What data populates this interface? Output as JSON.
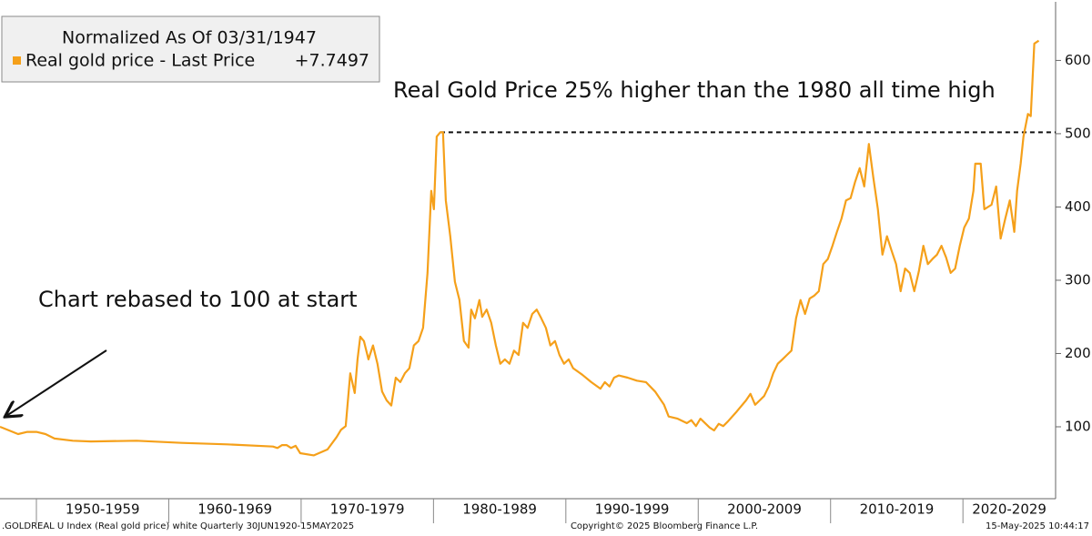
{
  "chart_data": {
    "type": "line",
    "legend_title": "Normalized As Of 03/31/1947",
    "last_price_label": "+7.7497",
    "annotations": [
      "Real Gold Price 25% higher than the 1980 all time high",
      "Chart rebased to 100 at start"
    ],
    "footer": [
      ".GOLDREAL U Index (Real gold price) white  Quarterly 30JUN1920-15MAY2025",
      "Copyright© 2025 Bloomberg Finance L.P.",
      "15-May-2025 10:44:17"
    ],
    "reference_line": {
      "value": 502,
      "x_start": 1980.52
    },
    "xlim": [
      1947.25,
      2027.0
    ],
    "xticks": [
      1950,
      1960,
      1970,
      1980,
      1990,
      2000,
      2010,
      2020
    ],
    "x_band_labels": [
      "1950-1959",
      "1960-1969",
      "1970-1979",
      "1980-1989",
      "1990-1999",
      "2000-2009",
      "2010-2019",
      "2020-2029"
    ],
    "ylim": [
      0,
      680
    ],
    "yticks": [
      100,
      200,
      300,
      400,
      500,
      600
    ],
    "grid": false,
    "x": [
      1947.25,
      1947.94,
      1948.62,
      1949.31,
      1950.0,
      1950.69,
      1951.37,
      1952.75,
      1954.12,
      1957.56,
      1961.0,
      1964.43,
      1967.87,
      1968.21,
      1968.56,
      1968.9,
      1969.24,
      1969.59,
      1969.93,
      1970.96,
      1971.99,
      1972.68,
      1973.02,
      1973.37,
      1973.71,
      1974.05,
      1974.26,
      1974.47,
      1974.74,
      1975.09,
      1975.43,
      1975.77,
      1976.12,
      1976.46,
      1976.81,
      1977.15,
      1977.49,
      1977.84,
      1978.18,
      1978.52,
      1978.87,
      1979.21,
      1979.55,
      1979.83,
      1980.03,
      1980.24,
      1980.52,
      1980.72,
      1980.93,
      1981.27,
      1981.62,
      1981.96,
      1982.3,
      1982.65,
      1982.85,
      1983.13,
      1983.47,
      1983.68,
      1984.02,
      1984.36,
      1984.71,
      1985.05,
      1985.39,
      1985.74,
      1986.08,
      1986.43,
      1986.77,
      1987.11,
      1987.46,
      1987.8,
      1988.14,
      1988.49,
      1988.83,
      1989.18,
      1989.52,
      1989.86,
      1990.21,
      1990.55,
      1991.24,
      1991.92,
      1992.61,
      1992.95,
      1993.3,
      1993.64,
      1993.99,
      1994.67,
      1995.36,
      1996.05,
      1996.74,
      1997.42,
      1997.77,
      1998.45,
      1999.14,
      1999.48,
      1999.83,
      2000.17,
      2000.86,
      2001.2,
      2001.55,
      2001.89,
      2002.23,
      2002.92,
      2003.61,
      2003.95,
      2004.3,
      2004.64,
      2004.98,
      2005.33,
      2005.67,
      2006.01,
      2006.36,
      2006.7,
      2007.04,
      2007.39,
      2007.73,
      2008.07,
      2008.42,
      2008.76,
      2009.11,
      2009.45,
      2009.79,
      2010.14,
      2010.48,
      2010.82,
      2011.17,
      2011.51,
      2011.85,
      2012.2,
      2012.54,
      2012.89,
      2013.23,
      2013.57,
      2013.92,
      2014.26,
      2014.6,
      2014.95,
      2015.29,
      2015.63,
      2015.98,
      2016.32,
      2016.67,
      2017.01,
      2017.35,
      2017.7,
      2018.04,
      2018.38,
      2018.73,
      2019.07,
      2019.41,
      2019.76,
      2020.1,
      2020.45,
      2020.79,
      2020.93,
      2021.34,
      2021.62,
      2022.16,
      2022.51,
      2022.85,
      2023.2,
      2023.54,
      2023.88,
      2024.09,
      2024.36,
      2024.57,
      2024.91,
      2025.12,
      2025.39,
      2025.73
    ],
    "series": [
      {
        "name": "Real gold price - Last Price",
        "color": "#f5a01a",
        "values": [
          100,
          95,
          90,
          93,
          93,
          90,
          84,
          81,
          80,
          81,
          78,
          76,
          73,
          71,
          75,
          75,
          71,
          74,
          64,
          61,
          69,
          86,
          96,
          101,
          173,
          146,
          192,
          223,
          217,
          192,
          211,
          186,
          148,
          136,
          129,
          167,
          161,
          173,
          180,
          211,
          217,
          235,
          310,
          422,
          397,
          496,
          502,
          502,
          409,
          360,
          298,
          273,
          217,
          208,
          260,
          248,
          273,
          250,
          260,
          242,
          211,
          186,
          192,
          186,
          204,
          198,
          242,
          235,
          254,
          260,
          248,
          235,
          211,
          217,
          198,
          186,
          192,
          180,
          171,
          161,
          152,
          161,
          155,
          167,
          170,
          167,
          163,
          161,
          148,
          130,
          114,
          111,
          105,
          109,
          101,
          111,
          99,
          95,
          104,
          101,
          107,
          121,
          136,
          145,
          130,
          136,
          142,
          155,
          173,
          186,
          192,
          198,
          204,
          248,
          273,
          254,
          275,
          279,
          285,
          322,
          329,
          347,
          366,
          384,
          409,
          412,
          434,
          453,
          428,
          486,
          440,
          397,
          335,
          360,
          341,
          322,
          285,
          316,
          310,
          285,
          312,
          347,
          322,
          329,
          335,
          347,
          331,
          310,
          316,
          347,
          372,
          384,
          422,
          459,
          459,
          397,
          403,
          428,
          357,
          384,
          409,
          366,
          422,
          459,
          496,
          527,
          524,
          623,
          627
        ]
      }
    ]
  }
}
